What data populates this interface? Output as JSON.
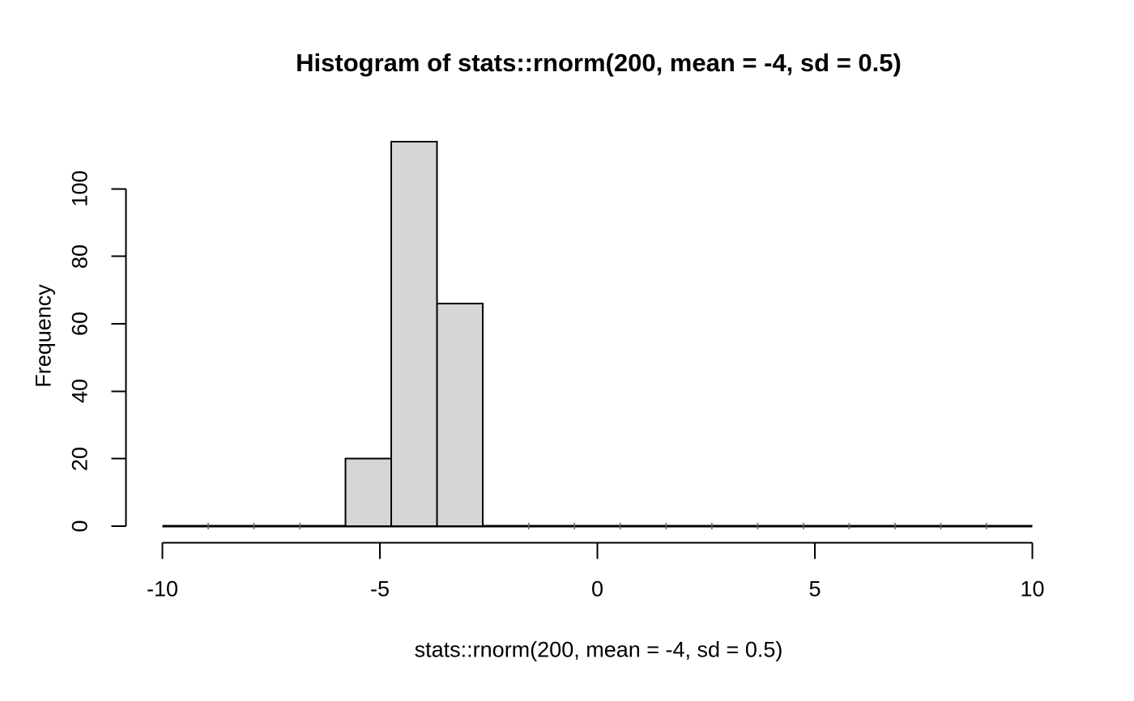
{
  "chart_data": {
    "type": "bar",
    "subtype": "histogram",
    "style": "r-base-graphics",
    "title": "Histogram of stats::rnorm(200, mean = -4, sd = 0.5)",
    "xlabel": "stats::rnorm(200, mean = -4, sd = 0.5)",
    "ylabel": "Frequency",
    "xlim": [
      -10,
      10
    ],
    "ylim": [
      0,
      100
    ],
    "xticks": [
      -10,
      -5,
      0,
      5,
      10
    ],
    "yticks": [
      0,
      20,
      40,
      60,
      80,
      100
    ],
    "bin_edges": [
      -10,
      -8.947,
      -7.895,
      -6.842,
      -5.789,
      -4.737,
      -3.684,
      -2.632,
      -1.579,
      -0.526,
      0.526,
      1.579,
      2.632,
      3.684,
      4.737,
      5.789,
      6.842,
      7.895,
      8.947,
      10
    ],
    "counts": [
      0,
      0,
      0,
      0,
      20,
      114,
      66,
      0,
      0,
      0,
      0,
      0,
      0,
      0,
      0,
      0,
      0,
      0,
      0
    ],
    "total_n": 200,
    "grid": false,
    "legend_position": "none",
    "bar_fill": "#d6d6d6",
    "bar_border": "#000000",
    "axis_color": "#000000",
    "background": "#ffffff"
  }
}
